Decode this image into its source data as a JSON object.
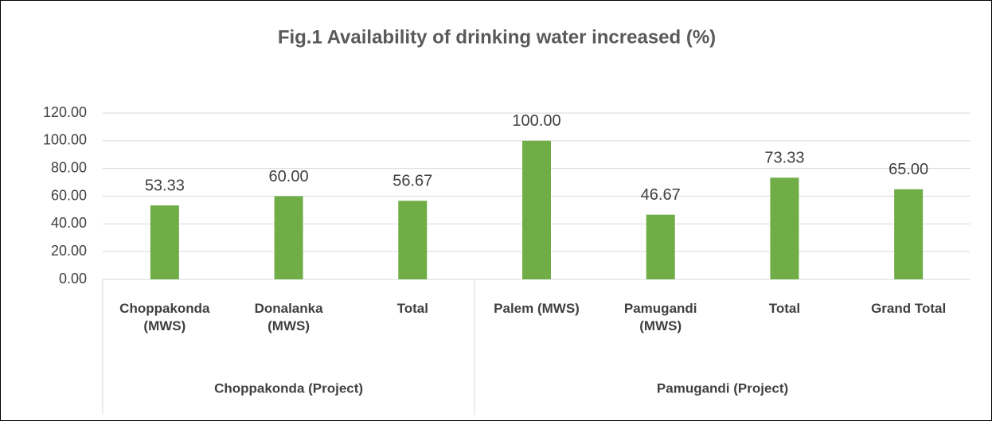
{
  "chart_data": {
    "type": "bar",
    "title": "Fig.1 Availability of drinking water increased (%)",
    "categories": [
      "Choppakonda (MWS)",
      "Donalanka (MWS)",
      "Total",
      "Palem (MWS)",
      "Pamugandi (MWS)",
      "Total",
      "Grand Total"
    ],
    "groups": [
      {
        "name": "Choppakonda (Project)",
        "size": 3
      },
      {
        "name": "Pamugandi (Project)",
        "size": 4
      }
    ],
    "values": [
      53.33,
      60,
      56.67,
      100,
      46.67,
      73.33,
      65
    ],
    "value_labels": [
      "53.33",
      "60.00",
      "56.67",
      "100.00",
      "46.67",
      "73.33",
      "65.00"
    ],
    "color": "#70ad47",
    "ylim": [
      0,
      120
    ],
    "yticks": [
      {
        "value": 0,
        "label": "0.00"
      },
      {
        "value": 20,
        "label": "20.00"
      },
      {
        "value": 40,
        "label": "40.00"
      },
      {
        "value": 60,
        "label": "60.00"
      },
      {
        "value": 80,
        "label": "80.00"
      },
      {
        "value": 100,
        "label": "100.00"
      },
      {
        "value": 120,
        "label": "120.00"
      }
    ],
    "grid": true
  }
}
